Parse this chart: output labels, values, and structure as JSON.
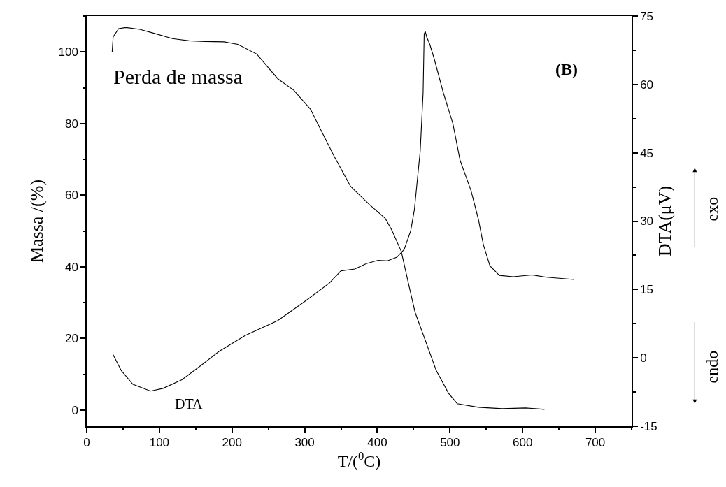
{
  "chart_data": {
    "type": "line",
    "xlabel": "T/($^{0}$C)",
    "ylabel": "Massa /(%)",
    "y2label": "DTA(μV)",
    "xlim": [
      0,
      750
    ],
    "xticks": [
      0,
      100,
      200,
      300,
      400,
      500,
      600,
      700
    ],
    "ylim": [
      -4.5,
      110
    ],
    "yticks": [
      0,
      20,
      40,
      60,
      80,
      100
    ],
    "y2lim": [
      -15,
      75
    ],
    "y2ticks": [
      -15,
      0,
      15,
      30,
      45,
      60,
      75
    ],
    "legend": false,
    "marker": "none",
    "line_style": "solid",
    "series": [
      {
        "name": "Perda de massa",
        "color": "#000000",
        "axis": "y",
        "x": [
          35,
          36.4,
          44,
          54,
          73,
          92.6,
          118,
          141,
          163,
          189,
          208,
          234,
          263,
          285,
          308,
          324,
          340,
          363,
          389,
          411,
          420,
          433,
          443,
          452,
          466,
          481,
          498,
          510,
          539,
          572,
          604,
          630
        ],
        "values": [
          100,
          104.2,
          106.5,
          106.8,
          106.3,
          105.2,
          103.7,
          103.1,
          102.9,
          102.8,
          102.1,
          99.4,
          92.5,
          89.3,
          84,
          77.5,
          71.1,
          62.5,
          57.4,
          53.5,
          50.2,
          44.3,
          35.2,
          27.3,
          19.5,
          11.1,
          4.7,
          1.8,
          0.8,
          0.4,
          0.6,
          0.2
        ]
      },
      {
        "name": "DTA",
        "color": "#000000",
        "axis": "y2",
        "x": [
          36.3,
          47.6,
          63.6,
          87.8,
          105,
          131,
          157,
          182,
          218,
          263,
          279,
          302,
          334,
          350,
          369,
          385,
          401,
          414,
          427,
          437,
          446,
          451,
          459,
          463,
          464.5,
          466,
          468,
          472,
          478,
          491,
          504,
          514,
          529,
          539,
          546,
          555,
          568,
          587,
          613,
          633,
          671
        ],
        "values": [
          0.7,
          -2.8,
          -5.8,
          -7.3,
          -6.7,
          -4.8,
          -1.7,
          1.4,
          4.9,
          8.2,
          10,
          12.6,
          16.4,
          19.1,
          19.5,
          20.7,
          21.4,
          21.3,
          22.1,
          23.8,
          27.9,
          32.5,
          45.3,
          58.1,
          71.1,
          71.6,
          70.4,
          68.9,
          65.8,
          58.1,
          51.4,
          43.3,
          36.7,
          30.5,
          24.8,
          20.2,
          18.1,
          17.8,
          18.2,
          17.7,
          17.2
        ]
      }
    ],
    "annotations": [
      "(B)",
      "exo",
      "endo"
    ]
  }
}
